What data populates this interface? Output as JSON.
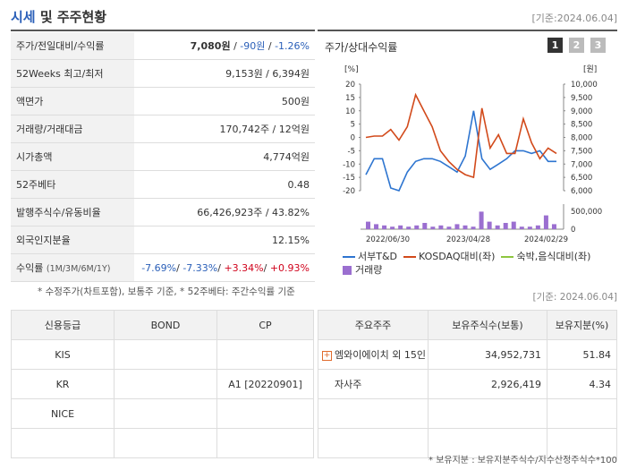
{
  "header": {
    "title_main": "시세",
    "title_rest": " 및 주주현황",
    "asof": "[기준:2024.06.04]"
  },
  "quote": {
    "rows": [
      {
        "label": "주가/전일대비/수익률",
        "price": "7,080원",
        "sep1": " / ",
        "change": "-90원",
        "sep2": " / ",
        "rate": "-1.26%"
      },
      {
        "label": "52Weeks 최고/최저",
        "value": "9,153원 / 6,394원"
      },
      {
        "label": "액면가",
        "value": "500원"
      },
      {
        "label": "거래량/거래대금",
        "value": "170,742주 / 12억원"
      },
      {
        "label": "시가총액",
        "value": "4,774억원"
      },
      {
        "label": "52주베타",
        "value": "0.48"
      },
      {
        "label": "발행주식수/유동비율",
        "value": "66,426,923주 / 43.82%"
      },
      {
        "label": "외국인지분율",
        "value": "12.15%"
      }
    ],
    "returns": {
      "label": "수익률",
      "label_sub": "(1M/3M/6M/1Y)",
      "r1": "-7.69%",
      "r2": "-7.33%",
      "r3": "+3.34%",
      "r4": "+0.93%",
      "slash": "/ "
    }
  },
  "chart_panel": {
    "title": "주가/상대수익률",
    "pages": [
      "1",
      "2",
      "3"
    ]
  },
  "chart_data": {
    "type": "line",
    "x_ticks": [
      "2022/06/30",
      "2023/04/28",
      "2024/02/29"
    ],
    "left_axis_unit": "[%]",
    "right_axis_unit": "[원]",
    "left_ticks": [
      "20",
      "15",
      "10",
      "5",
      "0",
      "-5",
      "-10",
      "-15",
      "-20"
    ],
    "right_ticks": [
      "10,000",
      "9,500",
      "9,000",
      "8,500",
      "8,000",
      "7,500",
      "7,000",
      "6,500",
      "6,000"
    ],
    "volume_ticks": [
      "500,000",
      "0"
    ],
    "ylim_left": [
      -20,
      20
    ],
    "series": [
      {
        "name": "서부T&D",
        "color": "#2e75d0",
        "values": [
          -14,
          -8,
          -8,
          -19,
          -20,
          -13,
          -9,
          -8,
          -8,
          -9,
          -11,
          -13,
          -7,
          10,
          -8,
          -12,
          -10,
          -8,
          -5,
          -5,
          -6,
          -5,
          -9,
          -9
        ]
      },
      {
        "name": "KOSDAQ대비(좌)",
        "color": "#d24a1b",
        "values": [
          0,
          0.5,
          0.5,
          3,
          -1,
          4,
          16,
          10,
          4,
          -5,
          -9,
          -12,
          -14,
          -15,
          11,
          -4,
          1,
          -6,
          -6,
          7,
          -2,
          -8,
          -4,
          -6
        ]
      },
      {
        "name": "숙박,음식대비(좌)",
        "color": "#8dc63f",
        "values": []
      }
    ],
    "volume": {
      "name": "거래량",
      "color": "#9b6fd0",
      "values": [
        0.3,
        0.2,
        0.15,
        0.1,
        0.15,
        0.1,
        0.15,
        0.25,
        0.1,
        0.15,
        0.1,
        0.2,
        0.15,
        0.1,
        0.7,
        0.3,
        0.15,
        0.25,
        0.3,
        0.1,
        0.1,
        0.15,
        0.55,
        0.2
      ]
    }
  },
  "notes": {
    "chart_note": "* 수정주가(차트포함), 보통주 기준, * 52주베타: 주간수익률 기준",
    "asof2": "[기준: 2024.06.04]",
    "footer": "* 보유지분 : 보유지분주식수/지수산정주식수*100"
  },
  "credit": {
    "headers": [
      "신용등급",
      "BOND",
      "CP"
    ],
    "rows": [
      [
        "KIS",
        "",
        ""
      ],
      [
        "KR",
        "",
        "A1 [20220901]"
      ],
      [
        "NICE",
        "",
        ""
      ],
      [
        "",
        "",
        ""
      ]
    ]
  },
  "holders": {
    "headers": [
      "주요주주",
      "보유주식수(보통)",
      "보유지분(%)"
    ],
    "rows": [
      {
        "name": "엠와이에이치 외 15인",
        "shares": "34,952,731",
        "pct": "51.84",
        "expand": true
      },
      {
        "name": "자사주",
        "shares": "2,926,419",
        "pct": "4.34",
        "expand": false
      },
      {
        "name": "",
        "shares": "",
        "pct": "",
        "expand": false
      },
      {
        "name": "",
        "shares": "",
        "pct": "",
        "expand": false
      }
    ]
  }
}
